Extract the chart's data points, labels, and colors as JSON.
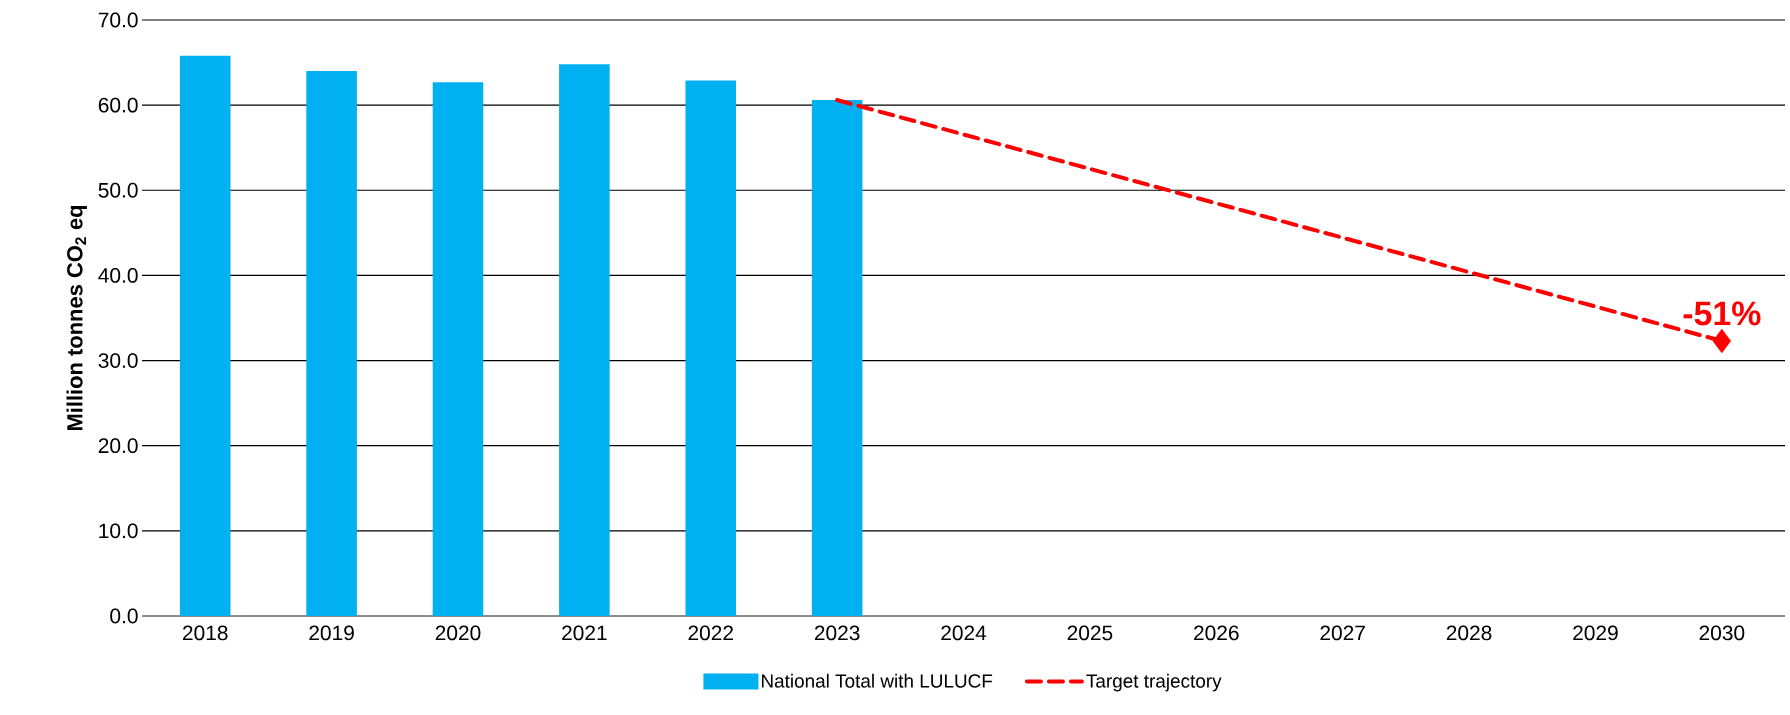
{
  "chart_data": {
    "type": "bar",
    "ylabel": "Million tonnes CO$_{2}$ eq",
    "categories": [
      "2018",
      "2019",
      "2020",
      "2021",
      "2022",
      "2023",
      "2024",
      "2025",
      "2026",
      "2027",
      "2028",
      "2029",
      "2030"
    ],
    "series": [
      {
        "name": "National Total with LULUCF",
        "color": "#00b0f0",
        "values": [
          65.8,
          64.0,
          62.7,
          64.8,
          62.9,
          60.6,
          null,
          null,
          null,
          null,
          null,
          null,
          null
        ]
      },
      {
        "name": "Target trajectory",
        "type": "line",
        "color": "#ff0000",
        "line_style": "dashed",
        "values": [
          null,
          null,
          null,
          null,
          null,
          60.6,
          null,
          null,
          null,
          null,
          null,
          null,
          32.3
        ]
      },
      {
        "type": "scatter",
        "color": "#ff0000",
        "marker": "diamond",
        "values": [
          null,
          null,
          null,
          null,
          null,
          null,
          null,
          null,
          null,
          null,
          null,
          null,
          32.3
        ]
      }
    ],
    "annotations": [
      {
        "text": "-51%",
        "x": "2030",
        "y": 32.3
      }
    ],
    "ylim": [
      0,
      70
    ],
    "yticks": [
      {
        "value": 0,
        "label": "0.0"
      },
      {
        "value": 10,
        "label": "10.0"
      },
      {
        "value": 20,
        "label": "20.0"
      },
      {
        "value": 30,
        "label": "30.0"
      },
      {
        "value": 40,
        "label": "40.0"
      },
      {
        "value": 50,
        "label": "50.0"
      },
      {
        "value": 60,
        "label": "60.0"
      },
      {
        "value": 70,
        "label": "70.0"
      }
    ],
    "grid": "y",
    "legend": "bottom"
  }
}
